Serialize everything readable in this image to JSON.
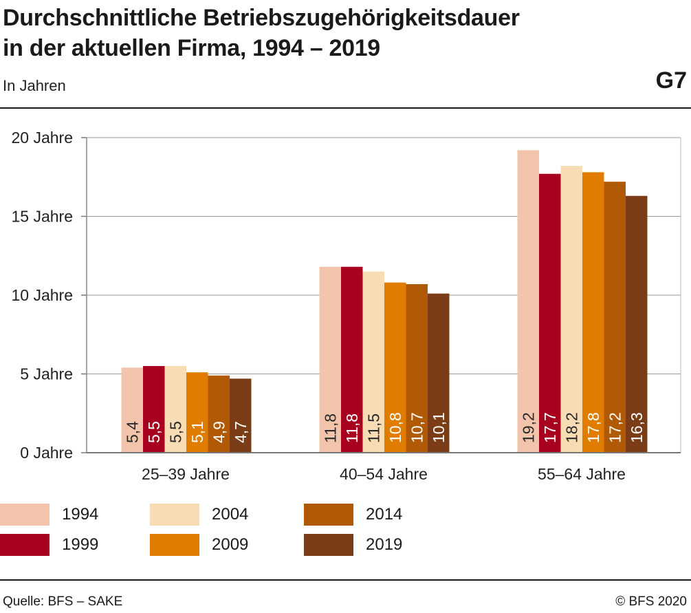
{
  "header": {
    "title_line1": "Durchschnittliche Betriebszugehörigkeitsdauer",
    "title_line2": "in der aktuellen Firma, 1994 – 2019",
    "subtitle": "In Jahren",
    "code": "G7"
  },
  "footer": {
    "source": "Quelle: BFS – SAKE",
    "copyright": "© BFS 2020"
  },
  "colors": {
    "1994": "#f2c4ac",
    "1999": "#a8001f",
    "2004": "#f7dcb4",
    "2009": "#e07d00",
    "2014": "#b05a06",
    "2019": "#7b3d17"
  },
  "chart_data": {
    "type": "bar",
    "categories": [
      "25–39 Jahre",
      "40–54 Jahre",
      "55–64 Jahre"
    ],
    "series": [
      {
        "name": "1994",
        "values": [
          5.4,
          11.8,
          19.2
        ],
        "labels": [
          "5,4",
          "11,8",
          "19,2"
        ]
      },
      {
        "name": "1999",
        "values": [
          5.5,
          11.8,
          17.7
        ],
        "labels": [
          "5,5",
          "11,8",
          "17,7"
        ]
      },
      {
        "name": "2004",
        "values": [
          5.5,
          11.5,
          18.2
        ],
        "labels": [
          "5,5",
          "11,5",
          "18,2"
        ]
      },
      {
        "name": "2009",
        "values": [
          5.1,
          10.8,
          17.8
        ],
        "labels": [
          "5,1",
          "10,8",
          "17,8"
        ]
      },
      {
        "name": "2014",
        "values": [
          4.9,
          10.7,
          17.2
        ],
        "labels": [
          "4,9",
          "10,7",
          "17,2"
        ]
      },
      {
        "name": "2019",
        "values": [
          4.7,
          10.1,
          16.3
        ],
        "labels": [
          "4,7",
          "10,1",
          "16,3"
        ]
      }
    ],
    "yticks": [
      {
        "value": 0,
        "label": "0 Jahre"
      },
      {
        "value": 5,
        "label": "5 Jahre"
      },
      {
        "value": 10,
        "label": "10 Jahre"
      },
      {
        "value": 15,
        "label": "15 Jahre"
      },
      {
        "value": 20,
        "label": "20 Jahre"
      }
    ],
    "ylim": [
      0,
      20
    ],
    "grid": true,
    "legend": "bottom"
  }
}
